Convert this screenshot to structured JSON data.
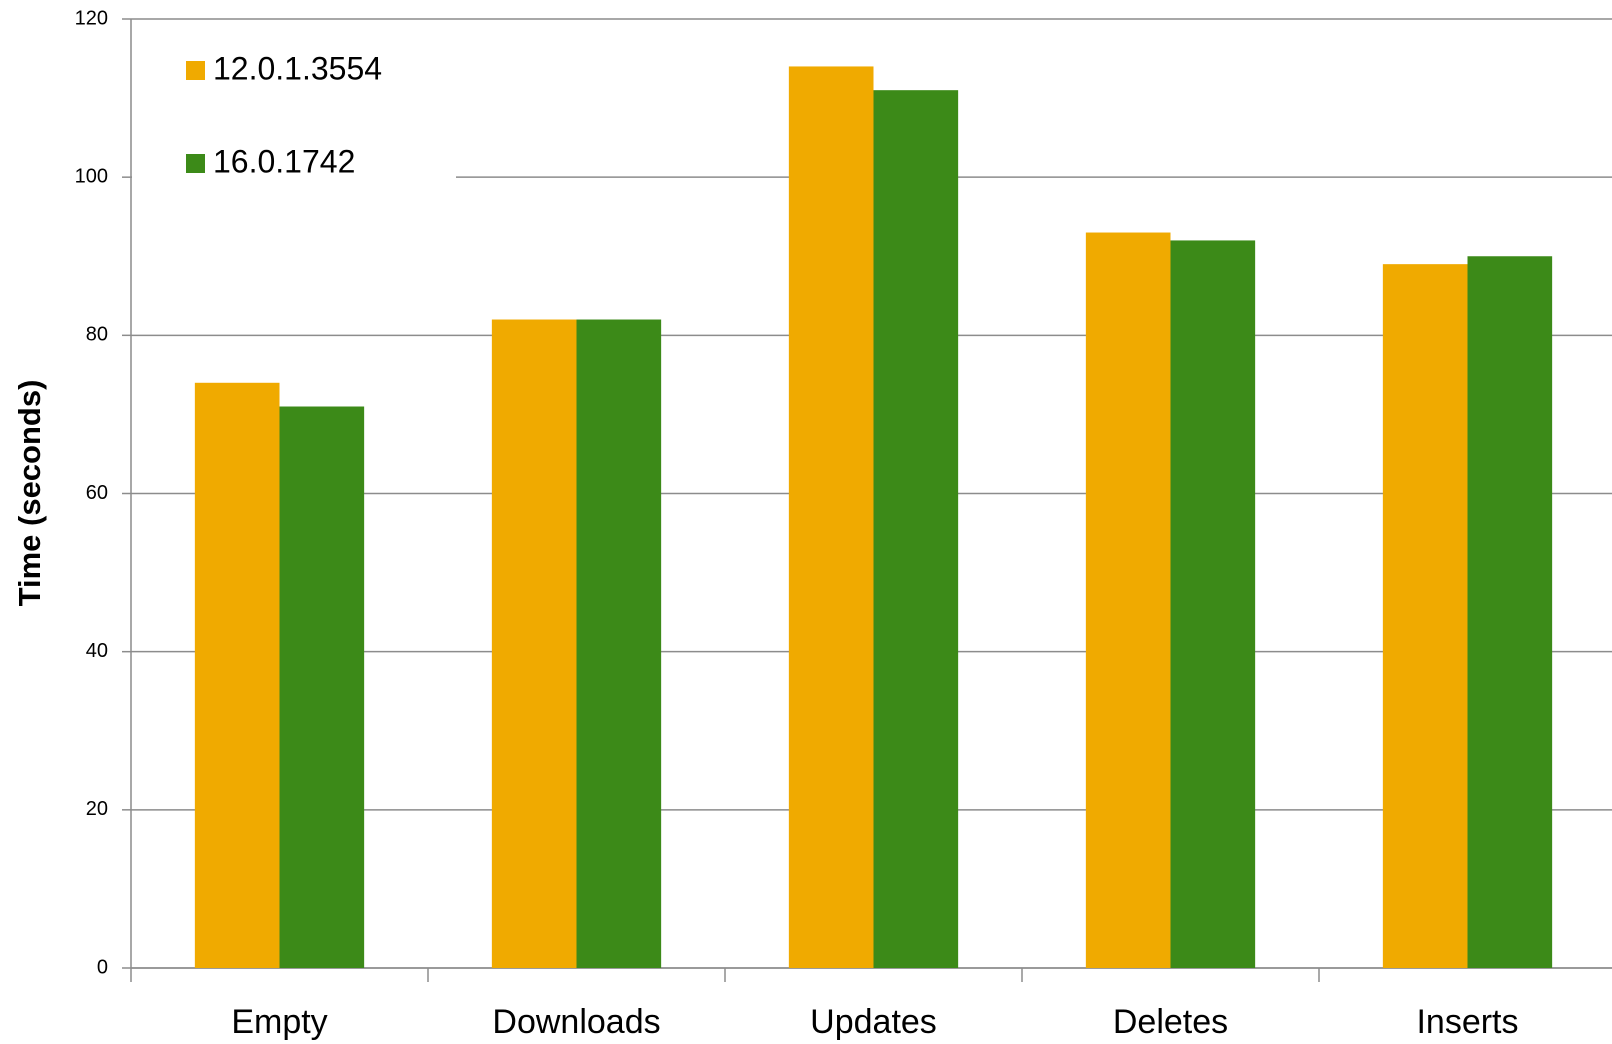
{
  "chart_data": {
    "type": "bar",
    "y_label": "Time (seconds)",
    "categories": [
      "Empty",
      "Downloads",
      "Updates",
      "Deletes",
      "Inserts"
    ],
    "series": [
      {
        "name": "12.0.1.3554",
        "color": "#f0aa00",
        "values": [
          74,
          82,
          114,
          93,
          89
        ]
      },
      {
        "name": "16.0.1742",
        "color": "#3c8a18",
        "values": [
          71,
          82,
          111,
          92,
          90
        ]
      }
    ],
    "ylim": [
      0,
      120
    ],
    "yticks": [
      0,
      20,
      40,
      60,
      80,
      100,
      120
    ],
    "grid": true,
    "legend": "top-left"
  }
}
